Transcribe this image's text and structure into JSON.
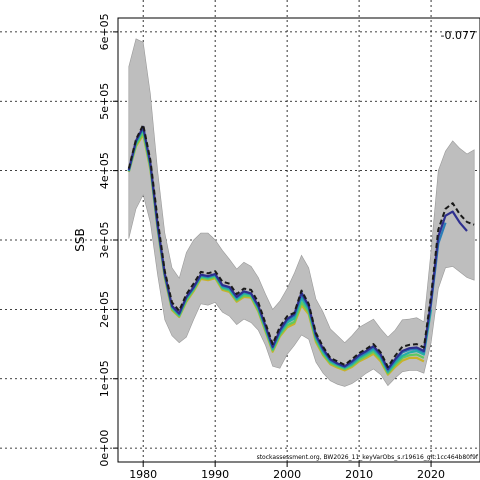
{
  "chart_data": {
    "type": "line",
    "title": "",
    "xlabel": "",
    "ylabel": "SSB",
    "xlim": [
      1976.5,
      2026.8
    ],
    "ylim": [
      -20000,
      620000
    ],
    "grid": true,
    "x_ticks": [
      {
        "value": 1980,
        "label": "1980"
      },
      {
        "value": 1990,
        "label": "1990"
      },
      {
        "value": 2000,
        "label": "2000"
      },
      {
        "value": 2010,
        "label": "2010"
      },
      {
        "value": 2020,
        "label": "2020"
      }
    ],
    "y_ticks": [
      {
        "value": 0,
        "label": "0e+00"
      },
      {
        "value": 100000,
        "label": "1e+05"
      },
      {
        "value": 200000,
        "label": "2e+05"
      },
      {
        "value": 300000,
        "label": "3e+05"
      },
      {
        "value": 400000,
        "label": "4e+05"
      },
      {
        "value": 500000,
        "label": "5e+05"
      },
      {
        "value": 600000,
        "label": "6e+05"
      }
    ],
    "annotation": "-0.077",
    "footnote": "stockassessment.org, BW2026_11_keyVarObs_s.r19616_git:1cc464b80f9f",
    "x": [
      1978,
      1979,
      1980,
      1981,
      1982,
      1983,
      1984,
      1985,
      1986,
      1987,
      1988,
      1989,
      1990,
      1991,
      1992,
      1993,
      1994,
      1995,
      1996,
      1997,
      1998,
      1999,
      2000,
      2001,
      2002,
      2003,
      2004,
      2005,
      2006,
      2007,
      2008,
      2009,
      2010,
      2011,
      2012,
      2013,
      2014,
      2015,
      2016,
      2017,
      2018,
      2019,
      2020,
      2021,
      2022,
      2023,
      2024,
      2025,
      2026
    ],
    "band": {
      "upper": [
        550000,
        590000,
        585000,
        510000,
        400000,
        310000,
        260000,
        245000,
        282000,
        300000,
        310000,
        310000,
        300000,
        285000,
        272000,
        258000,
        268000,
        262000,
        246000,
        222000,
        200000,
        212000,
        230000,
        252000,
        278000,
        260000,
        215000,
        196000,
        172000,
        162000,
        152000,
        162000,
        174000,
        180000,
        186000,
        172000,
        160000,
        170000,
        185000,
        186000,
        188000,
        182000,
        285000,
        400000,
        428000,
        443000,
        432000,
        424000,
        430000
      ],
      "lower": [
        302000,
        345000,
        365000,
        325000,
        250000,
        185000,
        162000,
        152000,
        160000,
        185000,
        208000,
        206000,
        210000,
        196000,
        190000,
        178000,
        186000,
        181000,
        170000,
        148000,
        118000,
        115000,
        135000,
        148000,
        163000,
        157000,
        124000,
        108000,
        97000,
        92000,
        89000,
        93000,
        100000,
        108000,
        114000,
        106000,
        90000,
        101000,
        110000,
        112000,
        112000,
        108000,
        152000,
        230000,
        260000,
        262000,
        254000,
        246000,
        242000
      ]
    },
    "series": [
      {
        "color": "#1a1a1a",
        "dashed": true,
        "values": [
          403000,
          445000,
          466000,
          415000,
          330000,
          255000,
          210000,
          198000,
          222000,
          237000,
          254000,
          252000,
          255000,
          240000,
          237000,
          222000,
          230000,
          228000,
          210000,
          180000,
          150000,
          175000,
          190000,
          195000,
          227000,
          208000,
          166000,
          146000,
          130000,
          125000,
          120000,
          128000,
          137000,
          143000,
          150000,
          138000,
          117000,
          133000,
          146000,
          149000,
          150000,
          145000,
          220000,
          315000,
          345000,
          353000,
          337000,
          326000,
          322000
        ]
      },
      {
        "color": "#2e2f8f",
        "dashed": false,
        "values": [
          401000,
          443000,
          463000,
          410000,
          322000,
          251000,
          205000,
          194000,
          218000,
          232000,
          250000,
          248000,
          251000,
          235000,
          232000,
          218000,
          226000,
          223000,
          205000,
          176000,
          146000,
          170000,
          186000,
          193000,
          224000,
          205000,
          163000,
          143000,
          128000,
          122000,
          118000,
          125000,
          134000,
          140000,
          147000,
          135000,
          114000,
          128000,
          140000,
          144000,
          145000,
          140000,
          212000,
          305000,
          335000,
          341000,
          325000,
          313000,
          null
        ]
      },
      {
        "color": "#2a7eb8",
        "dashed": false,
        "values": [
          400000,
          442000,
          462000,
          409000,
          321000,
          250000,
          204000,
          193000,
          217000,
          231000,
          249000,
          247000,
          250000,
          234000,
          231000,
          217000,
          225000,
          222000,
          204000,
          175000,
          145000,
          168000,
          184000,
          191000,
          221000,
          203000,
          161000,
          141000,
          127000,
          121000,
          117000,
          123000,
          132000,
          138000,
          145000,
          133000,
          112000,
          126000,
          138000,
          142000,
          143000,
          138000,
          208000,
          295000,
          325000,
          null,
          null,
          null,
          null
        ]
      },
      {
        "color": "#24b0a6",
        "dashed": false,
        "values": [
          399000,
          440000,
          460000,
          407000,
          319000,
          249000,
          203000,
          192000,
          216000,
          230000,
          248000,
          246000,
          249000,
          232000,
          229000,
          215000,
          223000,
          221000,
          202000,
          173000,
          143000,
          166000,
          181000,
          187000,
          216000,
          200000,
          159000,
          139000,
          125000,
          120000,
          116000,
          121000,
          130000,
          136000,
          142000,
          131000,
          110000,
          123000,
          133000,
          138000,
          140000,
          135000,
          200000,
          null,
          null,
          null,
          null,
          null,
          null
        ]
      },
      {
        "color": "#5ec962",
        "dashed": false,
        "values": [
          399000,
          437000,
          455000,
          404000,
          317000,
          247000,
          201000,
          190000,
          213000,
          228000,
          246000,
          244000,
          247000,
          230000,
          227000,
          213000,
          220000,
          219000,
          199000,
          170000,
          141000,
          163000,
          177000,
          182000,
          210000,
          196000,
          156000,
          136000,
          123000,
          118000,
          114000,
          119000,
          127000,
          133000,
          139000,
          128000,
          108000,
          120000,
          130000,
          134000,
          135000,
          130000,
          null,
          null,
          null,
          null,
          null,
          null,
          null
        ]
      },
      {
        "color": "#c8b22a",
        "dashed": false,
        "values": [
          398000,
          435000,
          452000,
          401000,
          315000,
          245000,
          199000,
          189000,
          211000,
          226000,
          244000,
          242000,
          245000,
          228000,
          225000,
          211000,
          218000,
          217000,
          197000,
          168000,
          139000,
          161000,
          174000,
          179000,
          206000,
          193000,
          153000,
          134000,
          121000,
          116000,
          112000,
          117000,
          125000,
          130000,
          136000,
          125000,
          106000,
          117000,
          126000,
          130000,
          130000,
          125000,
          null,
          null,
          null,
          null,
          null,
          null,
          null
        ]
      }
    ]
  }
}
